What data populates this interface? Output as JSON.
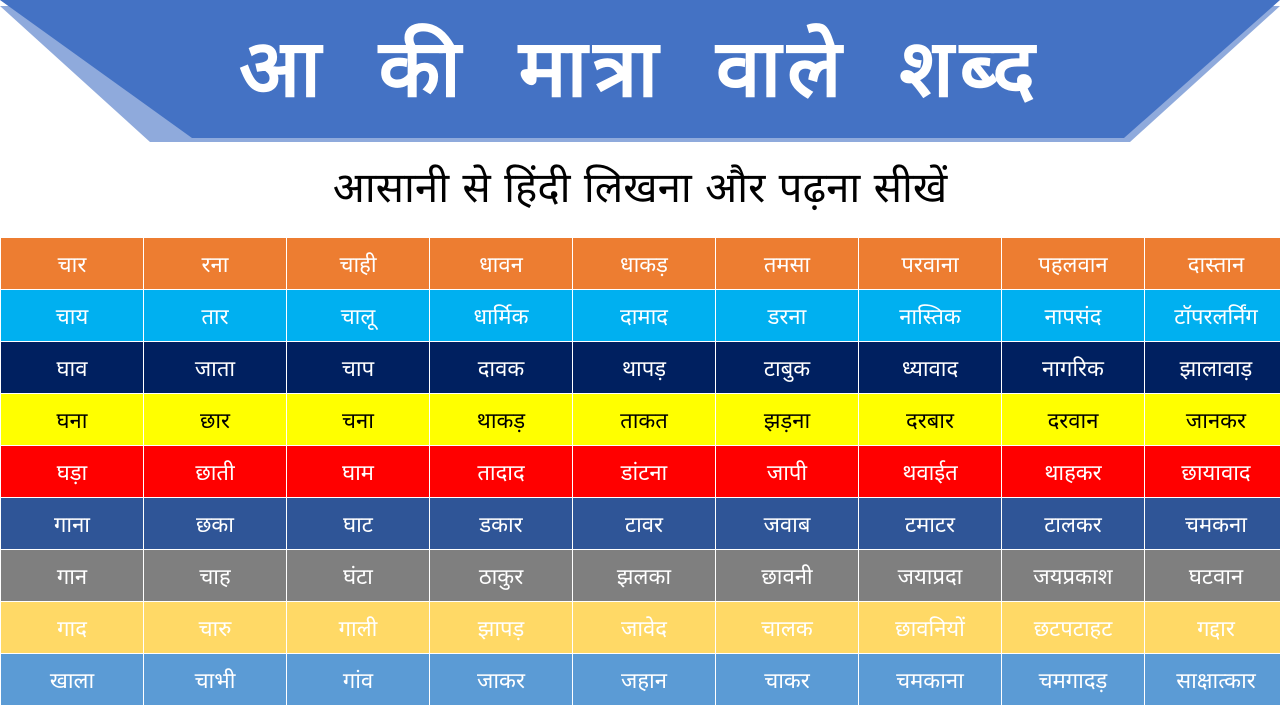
{
  "header": {
    "title": "आ की मात्रा वाले शब्द",
    "subtitle": "आसानी से हिंदी  लिखना और पढ़ना सीखें",
    "banner_color": "#4472C4",
    "banner_shadow_color": "#8FAADC"
  },
  "table": {
    "rows": [
      {
        "bg": "#ED7D31",
        "fg": "#FFFFFF",
        "cells": [
          "चार",
          "रना",
          "चाही",
          "धावन",
          "धाकड़",
          "तमसा",
          "परवाना",
          "पहलवान",
          "दास्तान"
        ]
      },
      {
        "bg": "#00B0F0",
        "fg": "#FFFFFF",
        "cells": [
          "चाय",
          "तार",
          "चालू",
          "धार्मिक",
          "दामाद",
          "डरना",
          "नास्तिक",
          "नापसंद",
          "टॉपरलर्निंग"
        ]
      },
      {
        "bg": "#002060",
        "fg": "#FFFFFF",
        "cells": [
          "घाव",
          "जाता",
          "चाप",
          "दावक",
          "थापड़",
          "टाबुक",
          "ध्यावाद",
          "नागरिक",
          "झालावाड़"
        ]
      },
      {
        "bg": "#FFFF00",
        "fg": "#000000",
        "cells": [
          "घना",
          "छार",
          "चना",
          "थाकड़",
          "ताकत",
          "झड़ना",
          "दरबार",
          "दरवान",
          "जानकर"
        ]
      },
      {
        "bg": "#FF0000",
        "fg": "#FFFFFF",
        "cells": [
          "घड़ा",
          "छाती",
          "घाम",
          "तादाद",
          "डांटना",
          "जापी",
          "थवाईत",
          "थाहकर",
          "छायावाद"
        ]
      },
      {
        "bg": "#2F5597",
        "fg": "#FFFFFF",
        "cells": [
          "गाना",
          "छका",
          "घाट",
          "डकार",
          "टावर",
          "जवाब",
          "टमाटर",
          "टालकर",
          "चमकना"
        ]
      },
      {
        "bg": "#7F7F7F",
        "fg": "#FFFFFF",
        "cells": [
          "गान",
          "चाह",
          "घंटा",
          "ठाकुर",
          "झलका",
          "छावनी",
          "जयाप्रदा",
          "जयप्रकाश",
          "घटवान"
        ]
      },
      {
        "bg": "#FFD966",
        "fg": "#FFFFFF",
        "cells": [
          "गाद",
          "चारु",
          "गाली",
          "झापड़",
          "जावेद",
          "चालक",
          "छावनियों",
          "छटपटाहट",
          "गद्दार"
        ]
      },
      {
        "bg": "#5B9BD5",
        "fg": "#FFFFFF",
        "cells": [
          "खाला",
          "चाभी",
          "गांव",
          "जाकर",
          "जहान",
          "चाकर",
          "चमकाना",
          "चमगादड़",
          "साक्षात्कार"
        ]
      }
    ]
  }
}
